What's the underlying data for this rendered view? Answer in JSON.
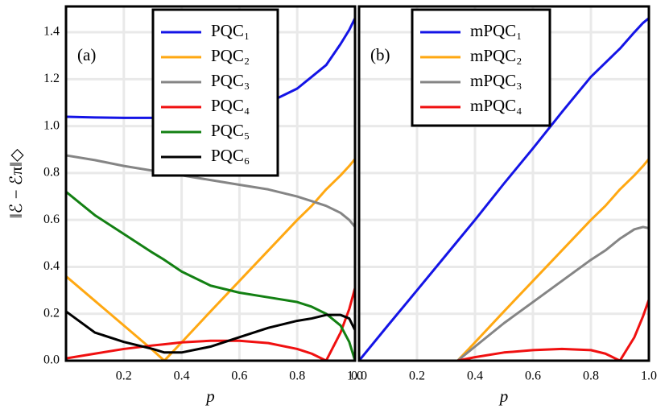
{
  "chart_data": [
    {
      "type": "line",
      "annotation": "(a)",
      "xlabel": "p",
      "ylabel": "‖ℰ − ℰπ‖◇",
      "xlim": [
        0,
        1
      ],
      "ylim": [
        0,
        1.51
      ],
      "xticks": [
        0.2,
        0.4,
        0.6,
        0.8,
        {
          "value": 1,
          "label": "1.0"
        }
      ],
      "yticks": [
        {
          "value": 0,
          "label": "0.0"
        },
        0.2,
        0.4,
        0.6,
        0.8,
        {
          "value": 1,
          "label": "1.0"
        },
        1.2,
        1.4
      ],
      "grid": true,
      "x": [
        0,
        0.1,
        0.2,
        0.3,
        0.34,
        0.4,
        0.5,
        0.6,
        0.7,
        0.8,
        0.85,
        0.9,
        0.95,
        0.98,
        1.0
      ],
      "series": [
        {
          "name": "PQC₁",
          "color": "#1414e6",
          "values": [
            1.04,
            1.037,
            1.035,
            1.035,
            1.036,
            1.04,
            1.05,
            1.07,
            1.1,
            1.16,
            1.21,
            1.26,
            1.35,
            1.41,
            1.46
          ]
        },
        {
          "name": "PQC₂",
          "color": "#ffa812",
          "values": [
            0.36,
            0.255,
            0.15,
            0.045,
            0.0,
            0.078,
            0.21,
            0.34,
            0.47,
            0.6,
            0.66,
            0.73,
            0.79,
            0.83,
            0.86
          ]
        },
        {
          "name": "PQC₃",
          "color": "#858585",
          "values": [
            0.875,
            0.855,
            0.83,
            0.81,
            0.8,
            0.79,
            0.77,
            0.75,
            0.73,
            0.7,
            0.68,
            0.66,
            0.63,
            0.6,
            0.57
          ]
        },
        {
          "name": "PQC₄",
          "color": "#f01010",
          "values": [
            0.01,
            0.03,
            0.05,
            0.065,
            0.07,
            0.078,
            0.085,
            0.085,
            0.075,
            0.05,
            0.03,
            0.0,
            0.12,
            0.22,
            0.31
          ]
        },
        {
          "name": "PQC₅",
          "color": "#138013",
          "values": [
            0.72,
            0.62,
            0.54,
            0.46,
            0.43,
            0.38,
            0.32,
            0.29,
            0.27,
            0.25,
            0.23,
            0.2,
            0.15,
            0.08,
            0.0
          ]
        },
        {
          "name": "PQC₆",
          "color": "#000000",
          "values": [
            0.21,
            0.12,
            0.08,
            0.05,
            0.035,
            0.035,
            0.06,
            0.1,
            0.14,
            0.17,
            0.18,
            0.195,
            0.195,
            0.18,
            0.13
          ]
        }
      ]
    },
    {
      "type": "line",
      "annotation": "(b)",
      "xlabel": "p",
      "xlim": [
        0,
        1
      ],
      "xticks": [
        {
          "value": 0,
          "label": "0.0"
        },
        0.2,
        0.4,
        0.6,
        0.8,
        {
          "value": 1,
          "label": "1.0"
        }
      ],
      "grid": true,
      "x": [
        0,
        0.1,
        0.2,
        0.3,
        0.34,
        0.4,
        0.5,
        0.6,
        0.7,
        0.8,
        0.85,
        0.9,
        0.95,
        0.98,
        1.0
      ],
      "series": [
        {
          "name": "mPQC₁",
          "color": "#1414e6",
          "values": [
            0,
            0.151,
            0.3,
            0.45,
            0.51,
            0.6,
            0.755,
            0.905,
            1.06,
            1.21,
            1.27,
            1.33,
            1.4,
            1.44,
            1.46
          ]
        },
        {
          "name": "mPQC₂",
          "color": "#ffa812",
          "values": [
            0,
            0,
            0,
            0,
            0,
            0.078,
            0.21,
            0.34,
            0.47,
            0.6,
            0.66,
            0.73,
            0.79,
            0.83,
            0.86
          ]
        },
        {
          "name": "mPQC₃",
          "color": "#858585",
          "values": [
            0,
            0,
            0,
            0,
            0,
            0.06,
            0.16,
            0.25,
            0.34,
            0.43,
            0.47,
            0.52,
            0.56,
            0.57,
            0.565
          ]
        },
        {
          "name": "mPQC₄",
          "color": "#f01010",
          "values": [
            0,
            0,
            0,
            0,
            0,
            0.015,
            0.035,
            0.045,
            0.05,
            0.045,
            0.03,
            0.0,
            0.1,
            0.19,
            0.26
          ]
        }
      ]
    }
  ]
}
